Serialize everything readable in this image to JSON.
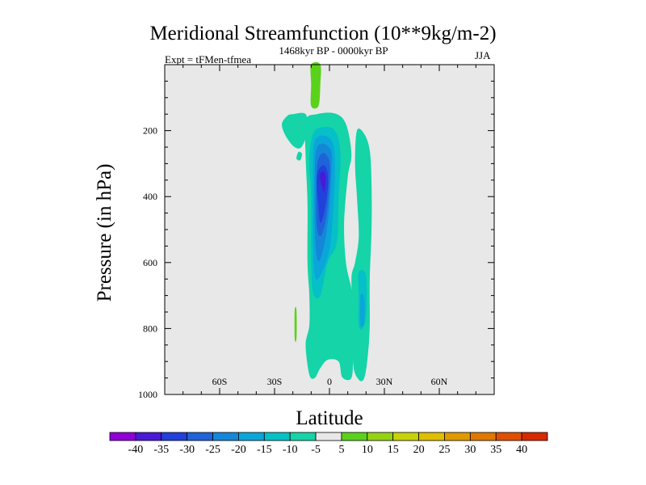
{
  "chart_data": {
    "type": "filled-contour",
    "title": "Meridional Streamfunction (10**9kg/m-2)",
    "experiment": "Expt = tFMen-tfmea",
    "subtitle": "1468kyr BP - 0000kyr BP",
    "season": "JJA",
    "xlabel": "Latitude",
    "ylabel": "Pressure (in hPa)",
    "xlim": [
      -90,
      90
    ],
    "ylim": [
      1000,
      0
    ],
    "x_ticks": [
      {
        "value": -60,
        "label": "60S"
      },
      {
        "value": -30,
        "label": "30S"
      },
      {
        "value": 0,
        "label": "0"
      },
      {
        "value": 30,
        "label": "30N"
      },
      {
        "value": 60,
        "label": "60N"
      }
    ],
    "y_ticks": [
      {
        "value": 200,
        "label": "200"
      },
      {
        "value": 400,
        "label": "400"
      },
      {
        "value": 600,
        "label": "600"
      },
      {
        "value": 800,
        "label": "800"
      },
      {
        "value": 1000,
        "label": "1000"
      }
    ],
    "background_color": "#e8e8e8",
    "colorbar": {
      "labels": [
        "-40",
        "-35",
        "-30",
        "-25",
        "-20",
        "-15",
        "-10",
        "-5",
        "5",
        "10",
        "15",
        "20",
        "25",
        "30",
        "35",
        "40"
      ],
      "colors": [
        "#8f00d8",
        "#4a19d6",
        "#2240db",
        "#1e63d8",
        "#1487d8",
        "#0aa6da",
        "#05c0c6",
        "#14d4a8",
        "#e8e8e8",
        "#5ad21c",
        "#96d214",
        "#c8d20a",
        "#e0be00",
        "#e09a00",
        "#e07800",
        "#e05000",
        "#d82800"
      ]
    },
    "regions": [
      {
        "level": "-10..-5",
        "color": "#14d4a8",
        "points": [
          [
            -20,
            150
          ],
          [
            -13,
            150
          ],
          [
            -12,
            198
          ],
          [
            -15,
            248
          ],
          [
            -19,
            250
          ],
          [
            -24,
            215
          ],
          [
            -26,
            180
          ],
          [
            -23,
            155
          ]
        ]
      },
      {
        "level": "-10..-5",
        "color": "#14d4a8",
        "points": [
          [
            -17,
            265
          ],
          [
            -15,
            270
          ],
          [
            -16,
            290
          ],
          [
            -18,
            285
          ]
        ]
      },
      {
        "level": "-10..-5",
        "color": "#14d4a8",
        "points": [
          [
            -13,
            170
          ],
          [
            -7,
            150
          ],
          [
            3,
            148
          ],
          [
            9,
            180
          ],
          [
            12,
            270
          ],
          [
            10,
            340
          ],
          [
            8,
            480
          ],
          [
            9,
            600
          ],
          [
            12,
            680
          ],
          [
            14,
            770
          ],
          [
            13,
            880
          ],
          [
            12,
            950
          ],
          [
            7,
            948
          ],
          [
            5,
            900
          ],
          [
            -1,
            895
          ],
          [
            -5,
            920
          ],
          [
            -8,
            950
          ],
          [
            -11,
            940
          ],
          [
            -13,
            850
          ],
          [
            -11,
            790
          ],
          [
            -11,
            700
          ],
          [
            -12,
            600
          ],
          [
            -12,
            420
          ],
          [
            -13,
            280
          ]
        ]
      },
      {
        "level": "-10..-5",
        "color": "#14d4a8",
        "points": [
          [
            15,
            200
          ],
          [
            19,
            210
          ],
          [
            22,
            260
          ],
          [
            23,
            360
          ],
          [
            23,
            500
          ],
          [
            22,
            650
          ],
          [
            22,
            790
          ],
          [
            21,
            880
          ],
          [
            19,
            950
          ],
          [
            16,
            955
          ],
          [
            13,
            910
          ],
          [
            13,
            780
          ],
          [
            12,
            650
          ],
          [
            14,
            600
          ],
          [
            16,
            520
          ],
          [
            15,
            400
          ],
          [
            14,
            300
          ]
        ]
      },
      {
        "level": "-15..-10",
        "color": "#05c0c6",
        "points": [
          [
            -9,
            210
          ],
          [
            -4,
            190
          ],
          [
            3,
            200
          ],
          [
            6,
            270
          ],
          [
            5,
            400
          ],
          [
            4,
            540
          ],
          [
            -1,
            600
          ],
          [
            -5,
            700
          ],
          [
            -9,
            690
          ],
          [
            -10,
            580
          ],
          [
            -10,
            400
          ],
          [
            -11,
            290
          ]
        ]
      },
      {
        "level": "-15..-10",
        "color": "#05c0c6",
        "points": [
          [
            16,
            630
          ],
          [
            20,
            640
          ],
          [
            20,
            760
          ],
          [
            18,
            800
          ],
          [
            16,
            790
          ],
          [
            16,
            700
          ]
        ]
      },
      {
        "level": "-20..-15",
        "color": "#0aa6da",
        "points": [
          [
            -8,
            230
          ],
          [
            -3,
            215
          ],
          [
            2,
            240
          ],
          [
            3,
            320
          ],
          [
            2,
            440
          ],
          [
            0,
            560
          ],
          [
            -5,
            640
          ],
          [
            -8,
            640
          ],
          [
            -9,
            530
          ],
          [
            -9,
            380
          ],
          [
            -9,
            290
          ]
        ]
      },
      {
        "level": "-20..-15",
        "color": "#0aa6da",
        "points": [
          [
            17,
            700
          ],
          [
            19,
            710
          ],
          [
            19,
            780
          ],
          [
            17,
            790
          ]
        ]
      },
      {
        "level": "-25..-20",
        "color": "#1487d8",
        "points": [
          [
            -7,
            255
          ],
          [
            -3,
            240
          ],
          [
            1,
            265
          ],
          [
            1,
            330
          ],
          [
            0,
            430
          ],
          [
            -2,
            520
          ],
          [
            -5,
            590
          ],
          [
            -7,
            580
          ],
          [
            -8,
            480
          ],
          [
            -8,
            330
          ]
        ]
      },
      {
        "level": "-30..-25",
        "color": "#1e63d8",
        "points": [
          [
            -6,
            285
          ],
          [
            -3,
            268
          ],
          [
            0,
            295
          ],
          [
            0,
            360
          ],
          [
            -2,
            470
          ],
          [
            -5,
            520
          ],
          [
            -7,
            480
          ],
          [
            -7,
            340
          ]
        ]
      },
      {
        "level": "-35..-30",
        "color": "#2240db",
        "points": [
          [
            -6,
            320
          ],
          [
            -3,
            305
          ],
          [
            -1,
            330
          ],
          [
            -1,
            380
          ],
          [
            -3,
            450
          ],
          [
            -5,
            480
          ],
          [
            -6,
            430
          ],
          [
            -7,
            360
          ]
        ]
      },
      {
        "level": "-40..-35",
        "color": "#4a19d6",
        "points": [
          [
            -5,
            330
          ],
          [
            -3,
            325
          ],
          [
            -2,
            350
          ],
          [
            -3,
            385
          ],
          [
            -4,
            370
          ],
          [
            -5,
            350
          ]
        ]
      },
      {
        "level": "5..10",
        "color": "#5ad21c",
        "points": [
          [
            -10,
            0
          ],
          [
            -5,
            0
          ],
          [
            -5,
            60
          ],
          [
            -6,
            125
          ],
          [
            -10,
            125
          ],
          [
            -10,
            60
          ]
        ]
      },
      {
        "level": "5..10",
        "color": "#5ad21c",
        "points": [
          [
            -19,
            745
          ],
          [
            -18,
            745
          ],
          [
            -18,
            830
          ],
          [
            -19,
            830
          ]
        ]
      }
    ]
  }
}
